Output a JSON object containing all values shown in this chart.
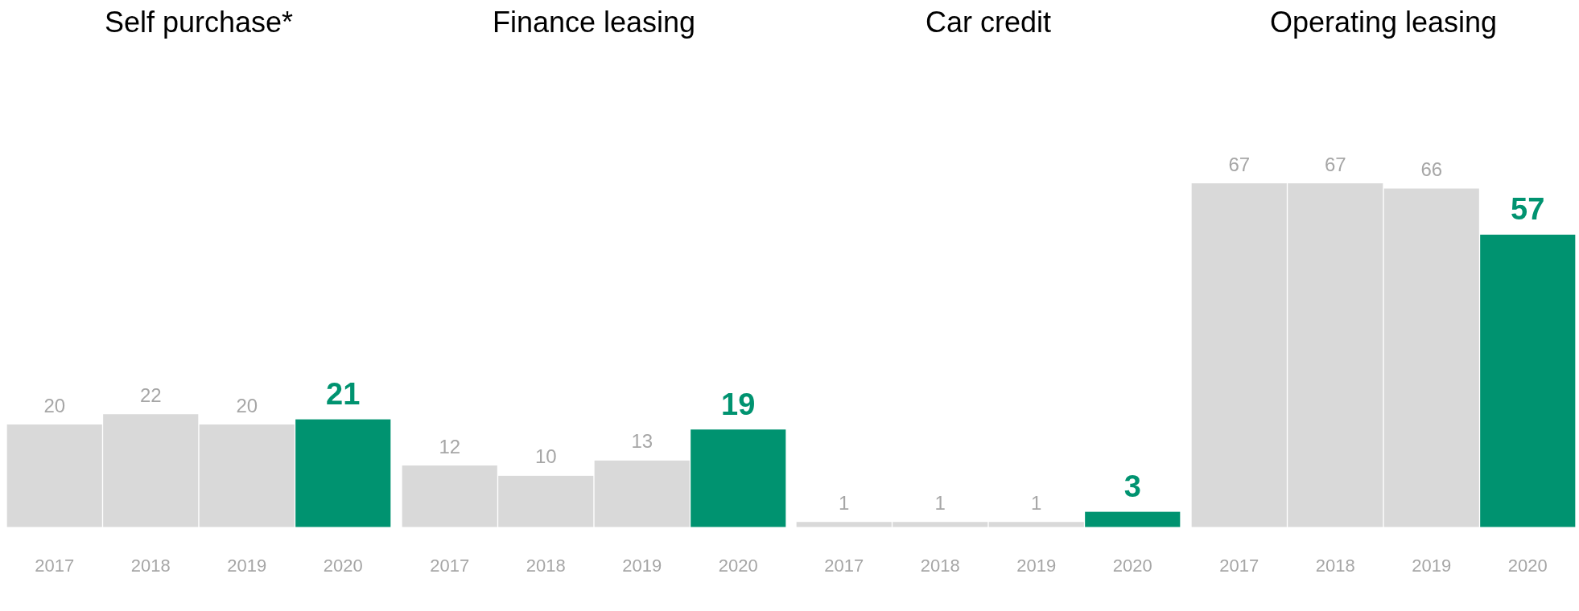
{
  "chart_data": [
    {
      "type": "bar",
      "title": "Self purchase*",
      "categories": [
        "2017",
        "2018",
        "2019",
        "2020"
      ],
      "values": [
        20,
        22,
        20,
        21
      ],
      "colors": [
        "#d9d9d9",
        "#d9d9d9",
        "#d9d9d9",
        "#009370"
      ],
      "data_labels": true,
      "tick_labels": "x"
    },
    {
      "type": "bar",
      "title": "Finance leasing",
      "categories": [
        "2017",
        "2018",
        "2019",
        "2020"
      ],
      "values": [
        12,
        10,
        13,
        19
      ],
      "colors": [
        "#d9d9d9",
        "#d9d9d9",
        "#d9d9d9",
        "#009370"
      ],
      "data_labels": true,
      "tick_labels": "x"
    },
    {
      "type": "bar",
      "title": "Car credit",
      "categories": [
        "2017",
        "2018",
        "2019",
        "2020"
      ],
      "values": [
        1,
        1,
        1,
        3
      ],
      "colors": [
        "#d9d9d9",
        "#d9d9d9",
        "#d9d9d9",
        "#009370"
      ],
      "data_labels": true,
      "tick_labels": "x"
    },
    {
      "type": "bar",
      "title": "Operating leasing",
      "categories": [
        "2017",
        "2018",
        "2019",
        "2020"
      ],
      "values": [
        67,
        67,
        66,
        57
      ],
      "colors": [
        "#d9d9d9",
        "#d9d9d9",
        "#d9d9d9",
        "#009370"
      ],
      "data_labels": true,
      "tick_labels": "x"
    }
  ]
}
